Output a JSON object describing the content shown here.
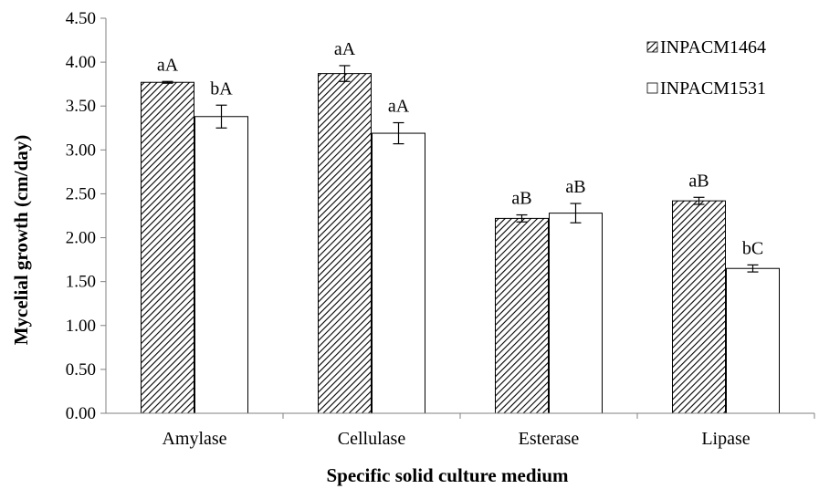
{
  "chart_data": {
    "type": "bar",
    "title": "",
    "xlabel": "Specific solid culture medium",
    "ylabel": "Mycelial growth (cm/day)",
    "ylim": [
      0,
      4.5
    ],
    "yticks": [
      "0.00",
      "0.50",
      "1.00",
      "1.50",
      "2.00",
      "2.50",
      "3.00",
      "3.50",
      "4.00",
      "4.50"
    ],
    "categories": [
      "Amylase",
      "Cellulase",
      "Esterase",
      "Lipase"
    ],
    "series": [
      {
        "name": "INPACM1464",
        "pattern": "diagonal-hatch",
        "values": [
          3.77,
          3.87,
          2.22,
          2.42
        ],
        "errors": [
          0.01,
          0.09,
          0.04,
          0.04
        ],
        "labels": [
          "aA",
          "aA",
          "aB",
          "aB"
        ]
      },
      {
        "name": "INPACM1531",
        "pattern": "white",
        "values": [
          3.38,
          3.19,
          2.28,
          1.65
        ],
        "errors": [
          0.13,
          0.12,
          0.11,
          0.04
        ],
        "labels": [
          "bA",
          "aA",
          "aB",
          "bC"
        ]
      }
    ],
    "grid": false,
    "legend_position": "top-right",
    "colors": {
      "bar_stroke": "#000000",
      "hatch": "#000000",
      "open_fill": "#ffffff"
    }
  }
}
